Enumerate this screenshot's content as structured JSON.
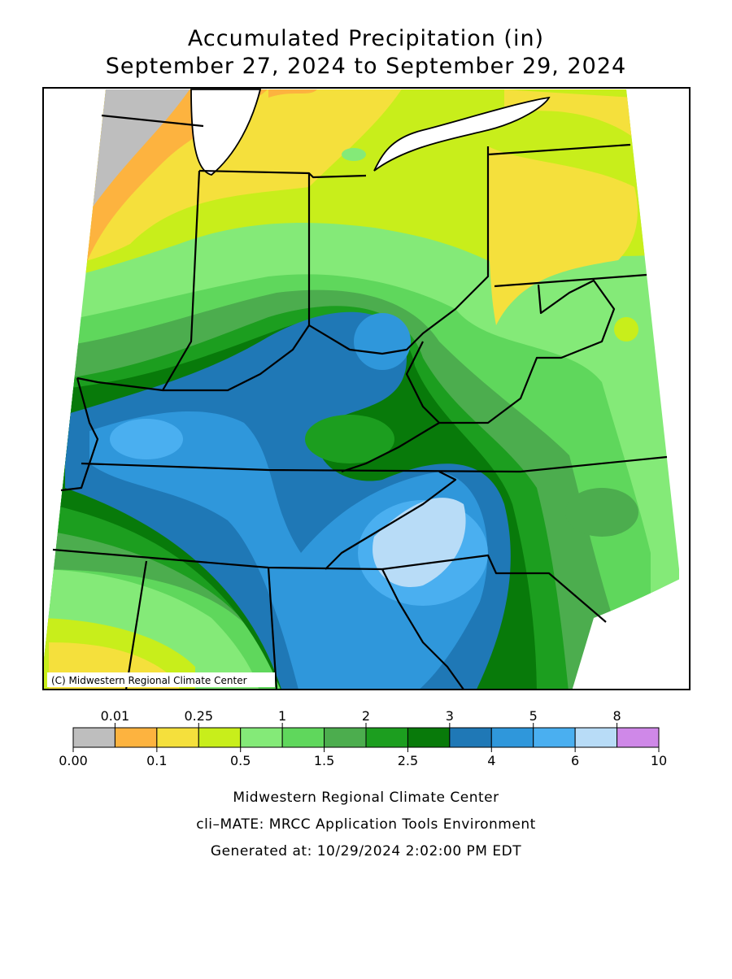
{
  "header": {
    "title_line1": "Accumulated Precipitation (in)",
    "title_line2": "September 27, 2024 to September 29, 2024"
  },
  "map": {
    "copyright": "(C) Midwestern Regional Climate Center"
  },
  "legend": {
    "bounds": [
      "0.00",
      "0.01",
      "0.1",
      "0.25",
      "0.5",
      "1",
      "1.5",
      "2",
      "2.5",
      "3",
      "4",
      "5",
      "6",
      "8",
      "10"
    ],
    "colors": [
      "#bebebe",
      "#fdb33f",
      "#f5e03c",
      "#c8ee1b",
      "#84ea78",
      "#5fd75c",
      "#4cad4e",
      "#1c9e1f",
      "#087a0a",
      "#1f78b6",
      "#2f97db",
      "#4aaff0",
      "#b8dcf7",
      "#cf88e8"
    ]
  },
  "footer": {
    "lines": [
      "Midwestern Regional Climate Center",
      "cli–MATE: MRCC Application Tools Environment",
      "Generated at: 10/29/2024 2:02:00 PM EDT"
    ]
  }
}
